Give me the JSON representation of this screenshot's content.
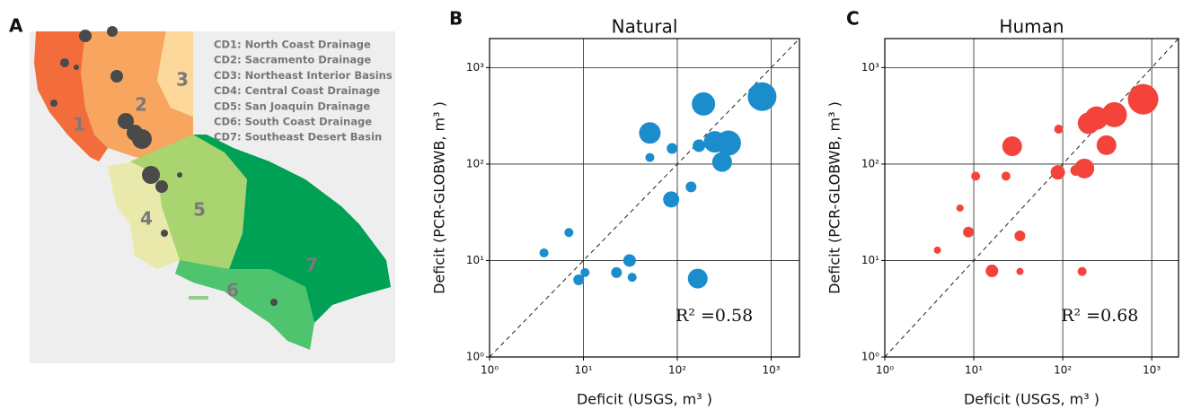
{
  "panels": [
    "A",
    "B",
    "C"
  ],
  "map": {
    "legend": [
      "CD1: North Coast Drainage",
      "CD2: Sacramento Drainage",
      "CD3: Northeast Interior Basins",
      "CD4: Central Coast Drainage",
      "CD5: San Joaquin Drainage",
      "CD6: South Coast Drainage",
      "CD7: Southeast Desert Basin"
    ],
    "region_labels": [
      "1",
      "2",
      "3",
      "4",
      "5",
      "6",
      "7"
    ]
  },
  "chart_data": [
    {
      "type": "scatter",
      "title": "Natural",
      "x_label": "Deficit (USGS, m³ )",
      "y_label": "Deficit (PCR-GLOBWB, m³ )",
      "annotation": "R² =0.58",
      "color": "#1b8dcc",
      "log_scale": true,
      "grid": true,
      "identity_line": true,
      "xlim": [
        1,
        2000
      ],
      "ylim": [
        1,
        2000
      ],
      "xticks": [
        {
          "value": 1,
          "label": "10⁰"
        },
        {
          "value": 10,
          "label": "10¹"
        },
        {
          "value": 100,
          "label": "10²"
        },
        {
          "value": 1000,
          "label": "10³"
        }
      ],
      "yticks": [
        {
          "value": 1,
          "label": "10⁰"
        },
        {
          "value": 10,
          "label": "10¹"
        },
        {
          "value": 100,
          "label": "10²"
        },
        {
          "value": 1000,
          "label": "10³"
        }
      ],
      "x": [
        800,
        190,
        350,
        250,
        300,
        51,
        51,
        88,
        170,
        140,
        86,
        7,
        3.8,
        10.4,
        8.9,
        22.5,
        31,
        33,
        165
      ],
      "values": [
        500,
        420,
        165,
        170,
        105,
        210,
        117,
        145,
        155,
        58,
        43,
        19.5,
        12,
        7.5,
        6.3,
        7.5,
        10,
        6.7,
        6.5
      ],
      "sizes": [
        16,
        13,
        14,
        12,
        11,
        12,
        5,
        6,
        7,
        6,
        9,
        5,
        5,
        5,
        6,
        6,
        7,
        5,
        11
      ]
    },
    {
      "type": "scatter",
      "title": "Human",
      "x_label": "Deficit (USGS, m³ )",
      "y_label": "Deficit (PCR-GLOBWB, m³ )",
      "annotation": "R² =0.68",
      "color": "#f4433a",
      "log_scale": true,
      "grid": true,
      "identity_line": true,
      "xlim": [
        1,
        2000
      ],
      "ylim": [
        1,
        2000
      ],
      "xticks": [
        {
          "value": 1,
          "label": "10⁰"
        },
        {
          "value": 10,
          "label": "10¹"
        },
        {
          "value": 100,
          "label": "10²"
        },
        {
          "value": 1000,
          "label": "10³"
        }
      ],
      "yticks": [
        {
          "value": 1,
          "label": "10⁰"
        },
        {
          "value": 10,
          "label": "10¹"
        },
        {
          "value": 100,
          "label": "10²"
        },
        {
          "value": 1000,
          "label": "10³"
        }
      ],
      "x": [
        800,
        380,
        240,
        195,
        310,
        27,
        90,
        88,
        175,
        140,
        10.5,
        23,
        7,
        8.7,
        3.9,
        33,
        16,
        33,
        165
      ],
      "values": [
        470,
        325,
        300,
        265,
        157,
        153,
        230,
        82,
        90,
        86,
        75,
        75,
        35,
        19.7,
        12.8,
        18,
        7.8,
        7.7,
        7.7
      ],
      "sizes": [
        17,
        14,
        13,
        12,
        11,
        11,
        5,
        8,
        11,
        6,
        5,
        5,
        4,
        6,
        4,
        6,
        7,
        4,
        5
      ]
    }
  ]
}
